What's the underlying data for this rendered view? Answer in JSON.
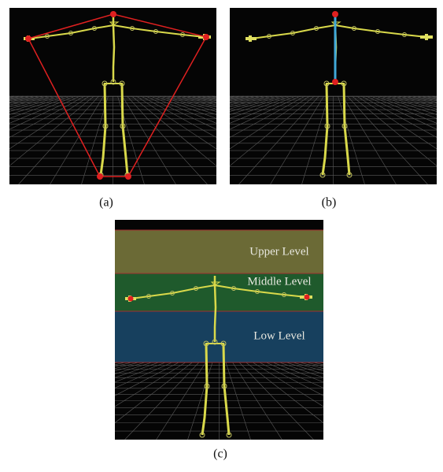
{
  "figure": {
    "panels": [
      {
        "label": "(a)"
      },
      {
        "label": "(b)"
      },
      {
        "label": "(c)",
        "levels": [
          "Upper Level",
          "Middle Level",
          "Low Level"
        ]
      }
    ]
  }
}
